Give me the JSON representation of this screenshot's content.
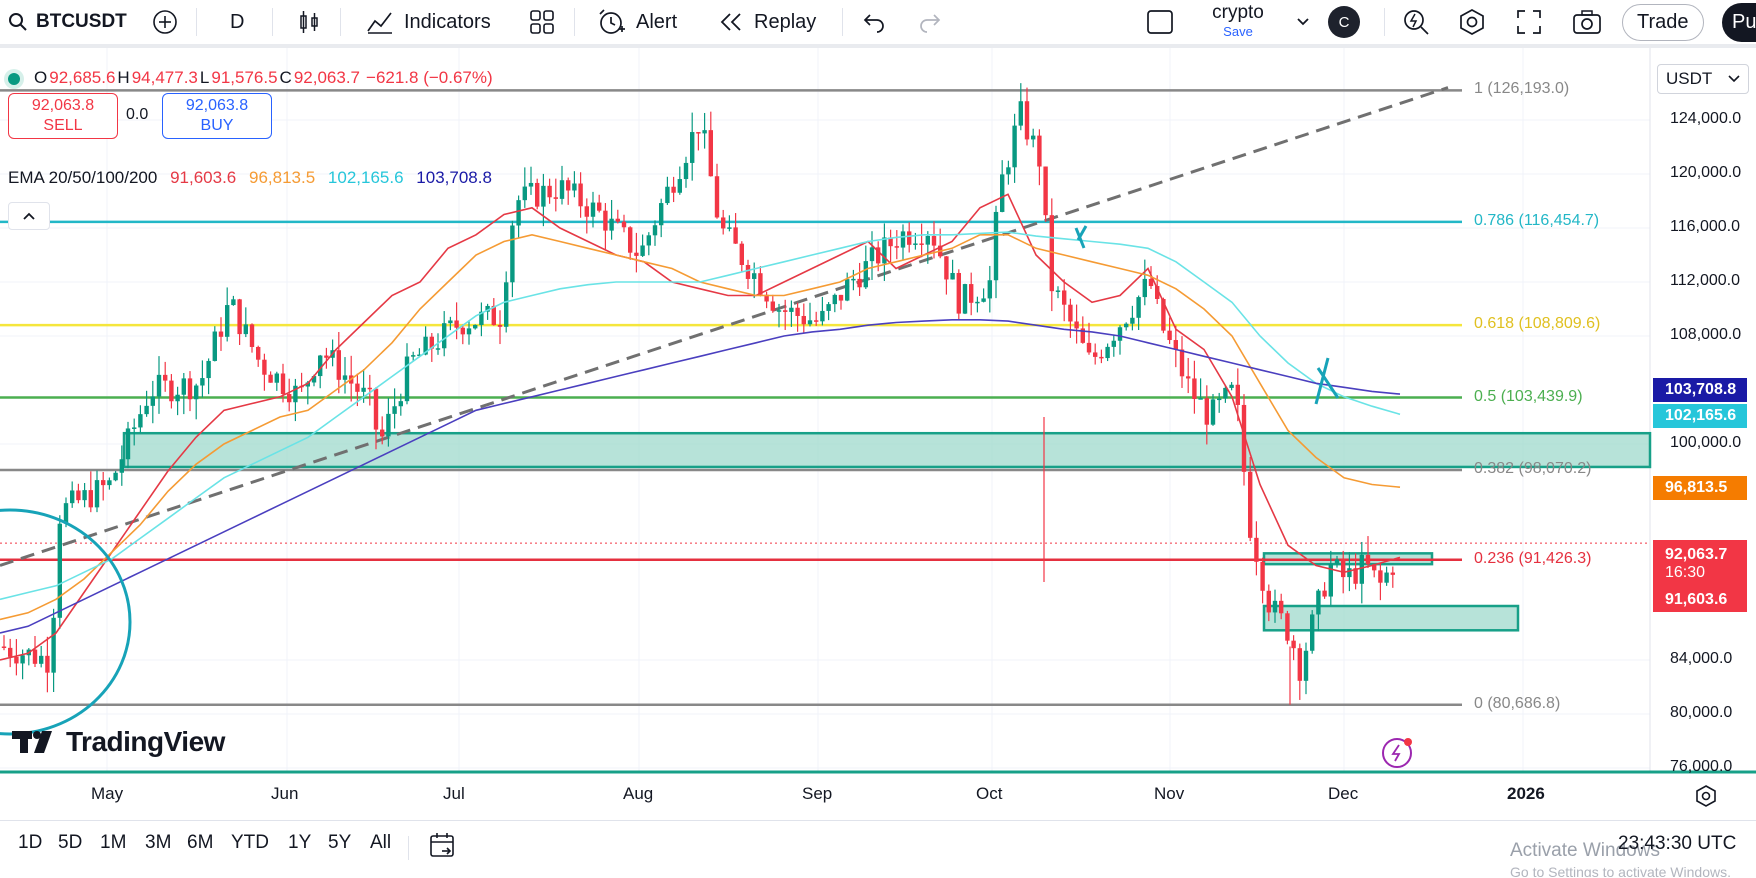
{
  "toolbar": {
    "symbol": "BTCUSDT",
    "interval": "D",
    "indicators_label": "Indicators",
    "alert_label": "Alert",
    "replay_label": "Replay",
    "layout_name": "crypto",
    "layout_sub": "Save",
    "avatar_letter": "C",
    "trade_label": "Trade",
    "publish_partial": "Pu"
  },
  "legend": {
    "open_lbl": "O",
    "open": "92,685.6",
    "high_lbl": "H",
    "high": "94,477.3",
    "low_lbl": "L",
    "low": "91,576.5",
    "close_lbl": "C",
    "close": "92,063.7",
    "change": "−621.8 (−0.67%)",
    "sell_price": "92,063.8",
    "sell_label": "SELL",
    "spread": "0.0",
    "buy_price": "92,063.8",
    "buy_label": "BUY",
    "ema_label": "EMA 20/50/100/200",
    "ema20": "91,603.6",
    "ema50": "96,813.5",
    "ema100": "102,165.6",
    "ema200": "103,708.8",
    "collapse_icon": "chevron-up-icon"
  },
  "currency": {
    "label": "USDT"
  },
  "colors": {
    "up": "#089981",
    "down": "#f23645",
    "ema20": "#e53945",
    "ema50": "#f59b34",
    "ema100": "#6ae3e6",
    "ema200": "#4a3fbf",
    "fib786": "#22b7c7",
    "fib618": "#f5e63c",
    "fib05": "#4caf50",
    "fib0236": "#e5303f",
    "fib_gray": "#888888",
    "zone": "#9fd9cc",
    "zone_border": "#17a088"
  },
  "chart_data": {
    "type": "candlestick",
    "symbol": "BTCUSDT",
    "interval": "1D",
    "ylim": [
      75000,
      127500
    ],
    "y_ticks": [
      "124,000.0",
      "120,000.0",
      "116,000.0",
      "112,000.0",
      "108,000.0",
      "100,000.0",
      "84,000.0",
      "80,000.0",
      "76,000.0"
    ],
    "y_tick_values": [
      124000,
      120000,
      116000,
      112000,
      108000,
      100000,
      84000,
      80000,
      76000
    ],
    "x_months": [
      "May",
      "Jun",
      "Jul",
      "Aug",
      "Sep",
      "Oct",
      "Nov",
      "Dec",
      "2026"
    ],
    "fib_levels": [
      {
        "label": "1 (126,193.0)",
        "value": 126193.0,
        "color": "fib_gray"
      },
      {
        "label": "0.786 (116,454.7)",
        "value": 116454.7,
        "color": "fib786"
      },
      {
        "label": "0.618 (108,809.6)",
        "value": 108809.6,
        "color": "fib618"
      },
      {
        "label": "0.5 (103,439.9)",
        "value": 103439.9,
        "color": "fib05"
      },
      {
        "label": "0.382 (98,070.2)",
        "value": 98070.2,
        "color": "fib_gray"
      },
      {
        "label": "0.236 (91,426.3)",
        "value": 91426.3,
        "color": "fib0236"
      },
      {
        "label": "0 (80,686.8)",
        "value": 80686.8,
        "color": "fib_gray"
      }
    ],
    "support_zones": [
      {
        "from": 98300,
        "to": 100800
      },
      {
        "from": 91100,
        "to": 91900
      },
      {
        "from": 86200,
        "to": 88000
      }
    ],
    "price_tags": [
      {
        "value": "103,708.8",
        "color": "#1a1aa6"
      },
      {
        "value": "102,165.6",
        "color": "#26c6da"
      },
      {
        "value": "96,813.5",
        "color": "#f57c00"
      },
      {
        "value": "92,063.7",
        "color": "#f23645",
        "countdown": "16:30"
      },
      {
        "value": "91,603.6",
        "color": "#f23645"
      }
    ],
    "current_price": 92063.7,
    "ema_series": {
      "ema20": [
        84000,
        84500,
        86000,
        89000,
        92000,
        95000,
        98000,
        100500,
        102500,
        103000,
        103500,
        104500,
        107000,
        109000,
        111000,
        112000,
        114500,
        115500,
        117000,
        117500,
        116000,
        115000,
        114000,
        113500,
        112000,
        111500,
        111000,
        111000,
        112000,
        113000,
        114000,
        115000,
        113000,
        114000,
        115000,
        117500,
        118500,
        114000,
        112000,
        110500,
        111000,
        113000,
        108500,
        107000,
        103500,
        97000,
        92500,
        91000,
        90500,
        91000,
        91600
      ],
      "ema50": [
        87000,
        87500,
        88500,
        90000,
        92000,
        94000,
        96500,
        98500,
        100000,
        101000,
        102000,
        102500,
        104000,
        105500,
        107500,
        110000,
        112000,
        114000,
        115000,
        115500,
        115000,
        114500,
        114000,
        113500,
        113000,
        112000,
        111500,
        111000,
        111000,
        111500,
        112000,
        113000,
        113500,
        114000,
        114500,
        115500,
        115500,
        114500,
        114000,
        113500,
        113000,
        112500,
        111500,
        110000,
        108000,
        104500,
        101000,
        99000,
        97500,
        97000,
        96800
      ],
      "ema100": [
        88500,
        89000,
        89500,
        90500,
        91500,
        93000,
        94500,
        96000,
        97500,
        98500,
        99500,
        100500,
        102000,
        103500,
        105000,
        106500,
        108000,
        109500,
        110500,
        111000,
        111500,
        111800,
        112000,
        112000,
        112000,
        112000,
        112500,
        113000,
        113500,
        114000,
        114500,
        115000,
        115300,
        115500,
        115500,
        115600,
        115700,
        115400,
        115200,
        115000,
        114800,
        114500,
        113500,
        112000,
        110500,
        108000,
        106000,
        104500,
        103500,
        102800,
        102200
      ],
      "ema200": [
        86000,
        86500,
        87500,
        88500,
        89500,
        90500,
        91500,
        92500,
        93500,
        94500,
        95500,
        96500,
        97500,
        98500,
        99500,
        100500,
        101500,
        102500,
        103000,
        103500,
        104000,
        104500,
        105000,
        105500,
        106000,
        106500,
        107000,
        107500,
        108000,
        108300,
        108500,
        108800,
        109000,
        109100,
        109200,
        109200,
        109100,
        108800,
        108500,
        108300,
        108000,
        107500,
        107000,
        106500,
        106000,
        105500,
        105000,
        104500,
        104200,
        103900,
        103700
      ]
    },
    "trendline": {
      "from": [
        0,
        91000
      ],
      "to": [
        1,
        126400
      ]
    }
  },
  "bottombar": {
    "timeframes": [
      "1D",
      "5D",
      "1M",
      "3M",
      "6M",
      "YTD",
      "1Y",
      "5Y",
      "All"
    ],
    "clock": "23:43:30 UTC",
    "watermark_line1": "Activate Windows",
    "watermark_line2": "Go to Settings to activate Windows."
  },
  "branding": {
    "logo_text": "TradingView"
  }
}
